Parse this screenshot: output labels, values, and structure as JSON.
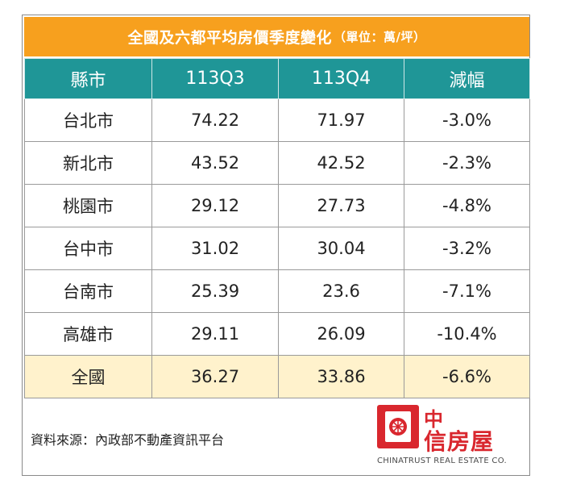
{
  "title": "全國及六都平均房價季度變化",
  "title_unit": "（單位：萬/坪）",
  "table": {
    "headers": [
      "縣市",
      "113Q3",
      "113Q4",
      "減幅"
    ],
    "rows": [
      [
        "台北市",
        "74.22",
        "71.97",
        "-3.0%"
      ],
      [
        "新北市",
        "43.52",
        "42.52",
        "-2.3%"
      ],
      [
        "桃園市",
        "29.12",
        "27.73",
        "-4.8%"
      ],
      [
        "台中市",
        "31.02",
        "30.04",
        "-3.2%"
      ],
      [
        "台南市",
        "25.39",
        "23.6",
        "-7.1%"
      ],
      [
        "高雄市",
        "29.11",
        "26.09",
        "-10.4%"
      ],
      [
        "全國",
        "36.27",
        "33.86",
        "-6.6%"
      ]
    ]
  },
  "source": "資料來源：內政部不動產資訊平台",
  "logo": {
    "line1": "中",
    "line2": "信房屋",
    "en": "CHINATRUST REAL ESTATE CO."
  },
  "colors": {
    "title_bg": "#f7a01e",
    "header_bg": "#1f9697",
    "national_row_bg": "#fff2cc",
    "logo_red": "#d9272e"
  }
}
